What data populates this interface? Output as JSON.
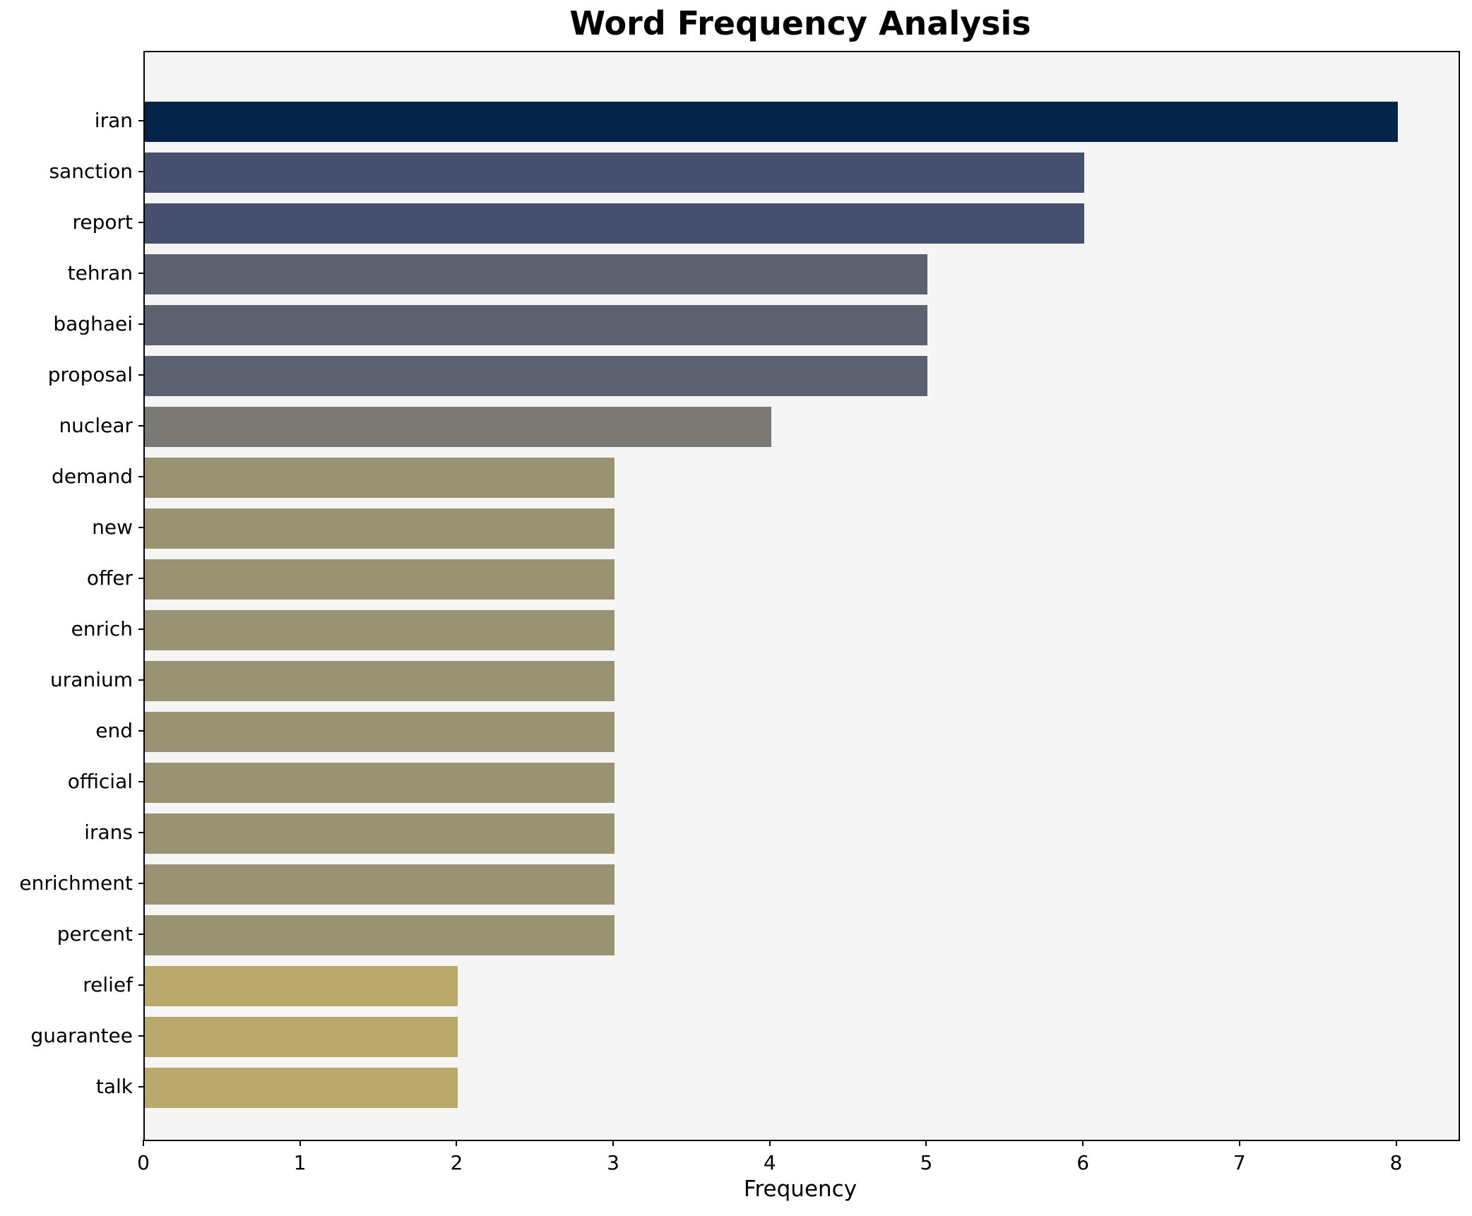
{
  "chart_data": {
    "type": "bar",
    "orientation": "horizontal",
    "title": "Word Frequency Analysis",
    "xlabel": "Frequency",
    "ylabel": "",
    "categories": [
      "iran",
      "sanction",
      "report",
      "tehran",
      "baghaei",
      "proposal",
      "nuclear",
      "demand",
      "new",
      "offer",
      "enrich",
      "uranium",
      "end",
      "official",
      "irans",
      "enrichment",
      "percent",
      "relief",
      "guarantee",
      "talk"
    ],
    "values": [
      8,
      6,
      6,
      5,
      5,
      5,
      4,
      3,
      3,
      3,
      3,
      3,
      3,
      3,
      3,
      3,
      3,
      2,
      2,
      2
    ],
    "bar_colors": [
      "#032349",
      "#46506e",
      "#46506e",
      "#5d6270",
      "#5d6270",
      "#5d6270",
      "#7a7973",
      "#999374",
      "#999374",
      "#999374",
      "#999374",
      "#999374",
      "#999374",
      "#999374",
      "#999374",
      "#999374",
      "#999374",
      "#b9aa6b",
      "#b9aa6b",
      "#b9aa6b"
    ],
    "xlim": [
      0,
      8.39
    ],
    "x_ticks": [
      0,
      1,
      2,
      3,
      4,
      5,
      6,
      7,
      8
    ],
    "grid": false,
    "legend": "none",
    "plot_background": "#f5f5f6",
    "figure_background": "#ffffff"
  },
  "layout_colors": {
    "spine": "#000000",
    "text": "#000000"
  }
}
